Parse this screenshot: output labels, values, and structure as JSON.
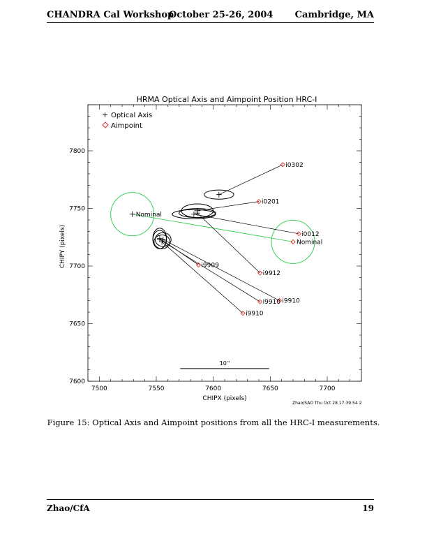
{
  "header": {
    "left": "CHANDRA Cal Workshop",
    "center": "October 25-26, 2004",
    "right": "Cambridge, MA"
  },
  "caption": "Figure 15: Optical Axis and Aimpoint positions from all the HRC-I measurements.",
  "footer": {
    "left": "Zhao/CfA",
    "page": "19"
  },
  "colors": {
    "aimpoint": "#e0302a",
    "circle": "#22cc44",
    "ink": "#000000"
  },
  "chart_data": {
    "type": "scatter",
    "title": "HRMA Optical Axis and Aimpoint Position   HRC-I",
    "xlabel": "CHIPX (pixels)",
    "ylabel": "CHIPY (pixels)",
    "xlim": [
      7490,
      7730
    ],
    "ylim": [
      7600,
      7840
    ],
    "xticks": [
      7500,
      7550,
      7600,
      7650,
      7700
    ],
    "yticks": [
      7600,
      7650,
      7700,
      7750,
      7800
    ],
    "legend": {
      "position": "top-left",
      "entries": [
        {
          "label": "Optical Axis",
          "marker": "plus"
        },
        {
          "label": "Aimpoint",
          "marker": "diamond"
        }
      ]
    },
    "stamp": "Zhao/SAO Thu Oct 28 17:39:54 2",
    "scale_bar": {
      "label": "10''",
      "x1": 7571,
      "x2": 7649,
      "y": 7611
    },
    "nominal": {
      "label": "Nominal",
      "optical_axis": {
        "x": 7529,
        "y": 7745,
        "circle_radius": 19
      },
      "aimpoint": {
        "x": 7670,
        "y": 7721,
        "circle_radius": 19
      }
    },
    "points": [
      {
        "label": "i0302",
        "axis": [
          7605,
          7762
        ],
        "aimpoint": [
          7661,
          7788
        ],
        "ellipse": [
          13,
          4
        ]
      },
      {
        "label": "i0201",
        "axis": [
          7586,
          7748
        ],
        "aimpoint": [
          7640,
          7756
        ],
        "ellipse": [
          14,
          6
        ]
      },
      {
        "label": "i0012",
        "axis": [
          7583,
          7745
        ],
        "aimpoint": [
          7675,
          7728
        ],
        "ellipse": [
          19,
          4
        ]
      },
      {
        "label": "i9912",
        "axis": [
          7586,
          7746
        ],
        "aimpoint": [
          7641,
          7694
        ],
        "ellipse": [
          16,
          4
        ]
      },
      {
        "label": "i9909",
        "axis": [
          7553,
          7724
        ],
        "aimpoint": [
          7587,
          7701
        ],
        "ellipse": [
          6,
          9
        ]
      },
      {
        "label": "i9910",
        "axis": [
          7556,
          7723
        ],
        "aimpoint": [
          7658,
          7670
        ],
        "ellipse": [
          7,
          6
        ]
      },
      {
        "label": "i9910",
        "axis": [
          7553,
          7723
        ],
        "aimpoint": [
          7641,
          7669
        ],
        "ellipse": [
          6,
          8
        ]
      },
      {
        "label": "i9910",
        "axis": [
          7555,
          7721
        ],
        "aimpoint": [
          7626,
          7659
        ],
        "ellipse": [
          7,
          6
        ]
      }
    ]
  }
}
